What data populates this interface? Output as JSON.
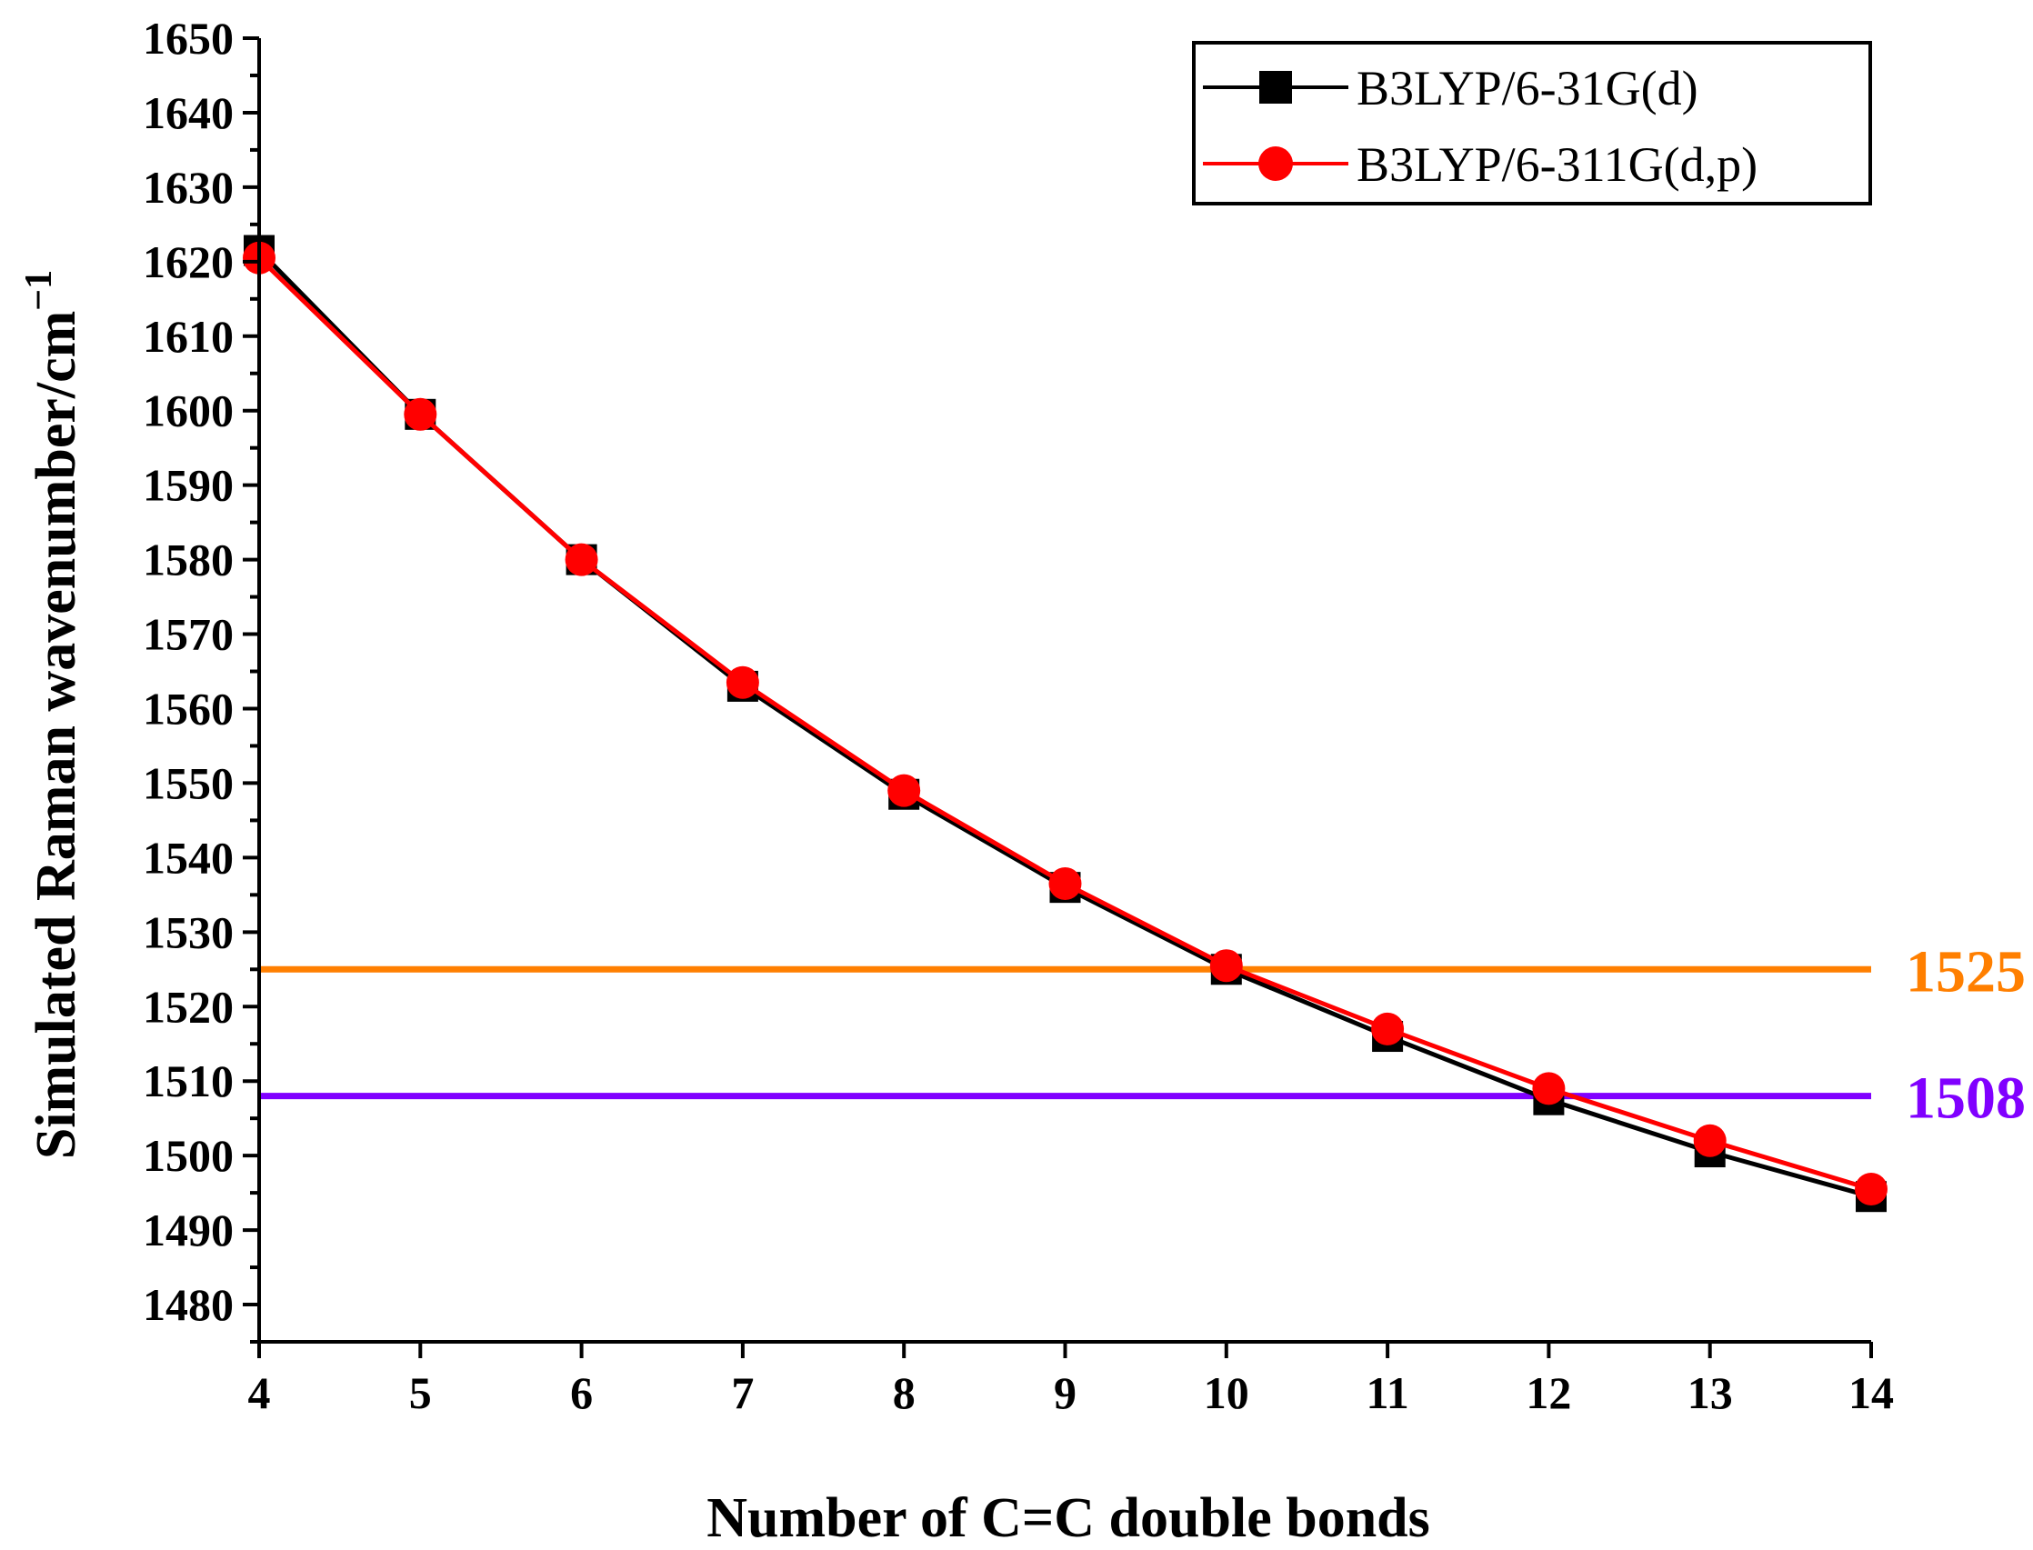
{
  "chart_data": {
    "type": "line",
    "title": "",
    "xlabel": "Number of C=C double bonds",
    "ylabel": "Simulated Raman wavenumber/cm",
    "ylabel_superscript": "−1",
    "xlim": [
      4,
      14
    ],
    "ylim": [
      1475,
      1650
    ],
    "xticks": [
      4,
      5,
      6,
      7,
      8,
      9,
      10,
      11,
      12,
      13,
      14
    ],
    "yticks": [
      1480,
      1490,
      1500,
      1510,
      1520,
      1530,
      1540,
      1550,
      1560,
      1570,
      1580,
      1590,
      1600,
      1610,
      1620,
      1630,
      1640,
      1650
    ],
    "grid": false,
    "legend_position": "top-right",
    "series": [
      {
        "name": "B3LYP/6-31G(d)",
        "color": "#000000",
        "marker": "square",
        "x": [
          4,
          5,
          6,
          7,
          8,
          9,
          10,
          11,
          12,
          13,
          14
        ],
        "y": [
          1621.5,
          1599.5,
          1580.0,
          1563.0,
          1548.5,
          1536.0,
          1525.0,
          1516.0,
          1507.5,
          1500.5,
          1494.5
        ]
      },
      {
        "name": "B3LYP/6-311G(d,p)",
        "color": "#ff0000",
        "marker": "circle",
        "x": [
          4,
          5,
          6,
          7,
          8,
          9,
          10,
          11,
          12,
          13,
          14
        ],
        "y": [
          1620.5,
          1599.5,
          1580.0,
          1563.5,
          1549.0,
          1536.5,
          1525.5,
          1517.0,
          1509.0,
          1502.0,
          1495.5
        ]
      }
    ],
    "reference_lines": [
      {
        "value": 1525,
        "label": "1525",
        "color": "#ff7f00"
      },
      {
        "value": 1508,
        "label": "1508",
        "color": "#8000ff"
      }
    ]
  }
}
